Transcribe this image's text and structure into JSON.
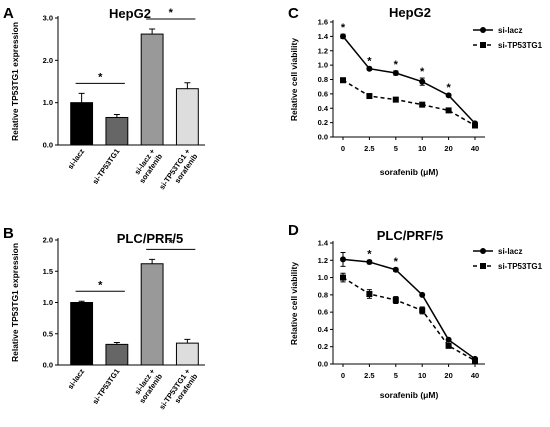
{
  "chart_data": [
    {
      "panel": "A",
      "type": "bar",
      "title": "HepG2",
      "ylabel": "Relative TP53TG1 expression",
      "ylim": [
        0,
        3.0
      ],
      "yticks": [
        "0.0",
        "1.0",
        "2.0",
        "3.0"
      ],
      "categories": [
        "si-lacz",
        "si-TP53TG1",
        "si-lacz + sorafenib",
        "si-TP53TG1 + sorafenib"
      ],
      "values": [
        1.0,
        0.65,
        2.62,
        1.33
      ],
      "errors": [
        0.22,
        0.07,
        0.12,
        0.14
      ],
      "colors": [
        "#000000",
        "#666666",
        "#999999",
        "#dddddd"
      ],
      "significance": [
        "*",
        "*"
      ]
    },
    {
      "panel": "B",
      "type": "bar",
      "title": "PLC/PRF/5",
      "ylabel": "Relative TP53TG1 expression",
      "ylim": [
        0,
        2.0
      ],
      "yticks": [
        "0.0",
        "0.5",
        "1.0",
        "1.5",
        "2.0"
      ],
      "categories": [
        "si-lacz",
        "si-TP53TG1",
        "si-lacz + sorafenib",
        "si-TP53TG1 + sorafenib"
      ],
      "values": [
        1.0,
        0.33,
        1.62,
        0.35
      ],
      "errors": [
        0.02,
        0.03,
        0.07,
        0.06
      ],
      "colors": [
        "#000000",
        "#666666",
        "#999999",
        "#dddddd"
      ],
      "significance": [
        "*",
        "*"
      ]
    },
    {
      "panel": "C",
      "type": "line",
      "title": "HepG2",
      "xlabel": "sorafenib (μM)",
      "ylabel": "Relative cell viability",
      "ylim": [
        0,
        1.6
      ],
      "yticks": [
        "0.0",
        "0.2",
        "0.4",
        "0.6",
        "0.8",
        "1.0",
        "1.2",
        "1.4",
        "1.6"
      ],
      "categories": [
        "0",
        "2.5",
        "5",
        "10",
        "20",
        "40"
      ],
      "series": [
        {
          "name": "si-lacz",
          "values": [
            1.4,
            0.95,
            0.89,
            0.77,
            0.58,
            0.19
          ],
          "errors": [
            0.03,
            0.02,
            0.03,
            0.05,
            0.02,
            0.02
          ],
          "style": "solid",
          "marker": "circle"
        },
        {
          "name": "si-TP53TG1",
          "values": [
            0.79,
            0.57,
            0.52,
            0.45,
            0.37,
            0.16
          ],
          "errors": [
            0.02,
            0.02,
            0.02,
            0.02,
            0.02,
            0.02
          ],
          "style": "dashed",
          "marker": "square"
        }
      ],
      "significance": [
        "*",
        "*",
        "*",
        "*",
        "*",
        ""
      ],
      "legend": "top-right"
    },
    {
      "panel": "D",
      "type": "line",
      "title": "PLC/PRF/5",
      "xlabel": "sorafenib (μM)",
      "ylabel": "Relative cell viability",
      "ylim": [
        0,
        1.4
      ],
      "yticks": [
        "0.0",
        "0.2",
        "0.4",
        "0.6",
        "0.8",
        "1.0",
        "1.2",
        "1.4"
      ],
      "categories": [
        "0",
        "2.5",
        "5",
        "10",
        "20",
        "40"
      ],
      "series": [
        {
          "name": "si-lacz",
          "values": [
            1.21,
            1.18,
            1.09,
            0.8,
            0.28,
            0.06
          ],
          "errors": [
            0.08,
            0.02,
            0.02,
            0.01,
            0.01,
            0.01
          ],
          "style": "solid",
          "marker": "circle"
        },
        {
          "name": "si-TP53TG1",
          "values": [
            1.0,
            0.81,
            0.74,
            0.62,
            0.21,
            0.04
          ],
          "errors": [
            0.05,
            0.05,
            0.04,
            0.04,
            0.02,
            0.01
          ],
          "style": "dashed",
          "marker": "square"
        }
      ],
      "significance": [
        "",
        "*",
        "*",
        "",
        "",
        ""
      ],
      "legend": "top-right"
    }
  ]
}
